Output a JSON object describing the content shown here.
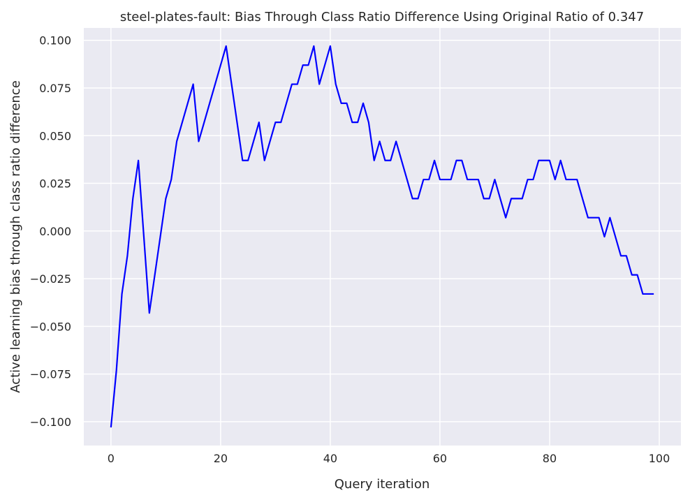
{
  "chart_data": {
    "type": "line",
    "title": "steel-plates-fault: Bias Through Class Ratio Difference Using Original Ratio of 0.347",
    "xlabel": "Query iteration",
    "ylabel": "Active learning bias through class ratio difference",
    "xlim": [
      -4.95,
      103.95
    ],
    "ylim": [
      -0.1125,
      0.1065
    ],
    "x_ticks": [
      0,
      20,
      40,
      60,
      80,
      100
    ],
    "x_tick_labels": [
      "0",
      "20",
      "40",
      "60",
      "80",
      "100"
    ],
    "y_ticks": [
      -0.1,
      -0.075,
      -0.05,
      -0.025,
      0.0,
      0.025,
      0.05,
      0.075,
      0.1
    ],
    "y_tick_labels": [
      "−0.100",
      "−0.075",
      "−0.050",
      "−0.025",
      "0.000",
      "0.025",
      "0.050",
      "0.075",
      "0.100"
    ],
    "grid": true,
    "background_color": "#eaeaf2",
    "grid_color": "#ffffff",
    "series": [
      {
        "color": "#0000ff",
        "x": [
          0,
          1,
          2,
          3,
          4,
          5,
          6,
          7,
          8,
          9,
          10,
          11,
          12,
          13,
          14,
          15,
          16,
          17,
          18,
          19,
          20,
          21,
          22,
          23,
          24,
          25,
          26,
          27,
          28,
          29,
          30,
          31,
          32,
          33,
          34,
          35,
          36,
          37,
          38,
          39,
          40,
          41,
          42,
          43,
          44,
          45,
          46,
          47,
          48,
          49,
          50,
          51,
          52,
          53,
          54,
          55,
          56,
          57,
          58,
          59,
          60,
          61,
          62,
          63,
          64,
          65,
          66,
          67,
          68,
          69,
          70,
          71,
          72,
          73,
          74,
          75,
          76,
          77,
          78,
          79,
          80,
          81,
          82,
          83,
          84,
          85,
          86,
          87,
          88,
          89,
          90,
          91,
          92,
          93,
          94,
          95,
          96,
          97,
          98,
          99
        ],
        "y": [
          -0.103,
          -0.073,
          -0.033,
          -0.013,
          0.017,
          0.037,
          -0.003,
          -0.043,
          -0.023,
          -0.003,
          0.017,
          0.027,
          0.047,
          0.057,
          0.067,
          0.077,
          0.047,
          0.057,
          0.067,
          0.077,
          0.087,
          0.097,
          0.077,
          0.057,
          0.037,
          0.037,
          0.047,
          0.057,
          0.037,
          0.047,
          0.057,
          0.057,
          0.067,
          0.077,
          0.077,
          0.087,
          0.087,
          0.097,
          0.077,
          0.087,
          0.097,
          0.077,
          0.067,
          0.067,
          0.057,
          0.057,
          0.067,
          0.057,
          0.037,
          0.047,
          0.037,
          0.037,
          0.047,
          0.037,
          0.027,
          0.017,
          0.017,
          0.027,
          0.027,
          0.037,
          0.027,
          0.027,
          0.027,
          0.037,
          0.037,
          0.027,
          0.027,
          0.027,
          0.017,
          0.017,
          0.027,
          0.017,
          0.007,
          0.017,
          0.017,
          0.017,
          0.027,
          0.027,
          0.037,
          0.037,
          0.037,
          0.027,
          0.037,
          0.027,
          0.027,
          0.027,
          0.017,
          0.007,
          0.007,
          0.007,
          -0.003,
          0.007,
          -0.003,
          -0.013,
          -0.013,
          -0.023,
          -0.023,
          -0.033,
          -0.033,
          -0.033
        ]
      }
    ]
  }
}
